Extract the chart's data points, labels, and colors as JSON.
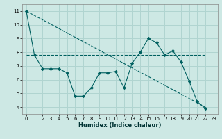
{
  "xlabel": "Humidex (Indice chaleur)",
  "background_color": "#cde8e4",
  "grid_color": "#b0d4d0",
  "line_color": "#006060",
  "xlim": [
    -0.5,
    23.5
  ],
  "ylim": [
    3.5,
    11.5
  ],
  "xticks": [
    0,
    1,
    2,
    3,
    4,
    5,
    6,
    7,
    8,
    9,
    10,
    11,
    12,
    13,
    14,
    15,
    16,
    17,
    18,
    19,
    20,
    21,
    22,
    23
  ],
  "yticks": [
    4,
    5,
    6,
    7,
    8,
    9,
    10,
    11
  ],
  "data_x": [
    0,
    1,
    2,
    3,
    4,
    5,
    6,
    7,
    8,
    9,
    10,
    11,
    12,
    13,
    14,
    15,
    16,
    17,
    18,
    19,
    20,
    21,
    22
  ],
  "data_y": [
    11,
    7.8,
    6.8,
    6.8,
    6.8,
    6.5,
    4.8,
    4.8,
    5.4,
    6.5,
    6.5,
    6.6,
    5.4,
    7.2,
    8.0,
    9.0,
    8.7,
    7.8,
    8.1,
    7.3,
    5.9,
    4.4,
    3.9
  ],
  "trend1_x": [
    0,
    22
  ],
  "trend1_y": [
    7.8,
    7.8
  ],
  "trend2_x": [
    0,
    22
  ],
  "trend2_y": [
    11.0,
    4.0
  ],
  "xlabel_fontsize": 6,
  "tick_fontsize": 5
}
